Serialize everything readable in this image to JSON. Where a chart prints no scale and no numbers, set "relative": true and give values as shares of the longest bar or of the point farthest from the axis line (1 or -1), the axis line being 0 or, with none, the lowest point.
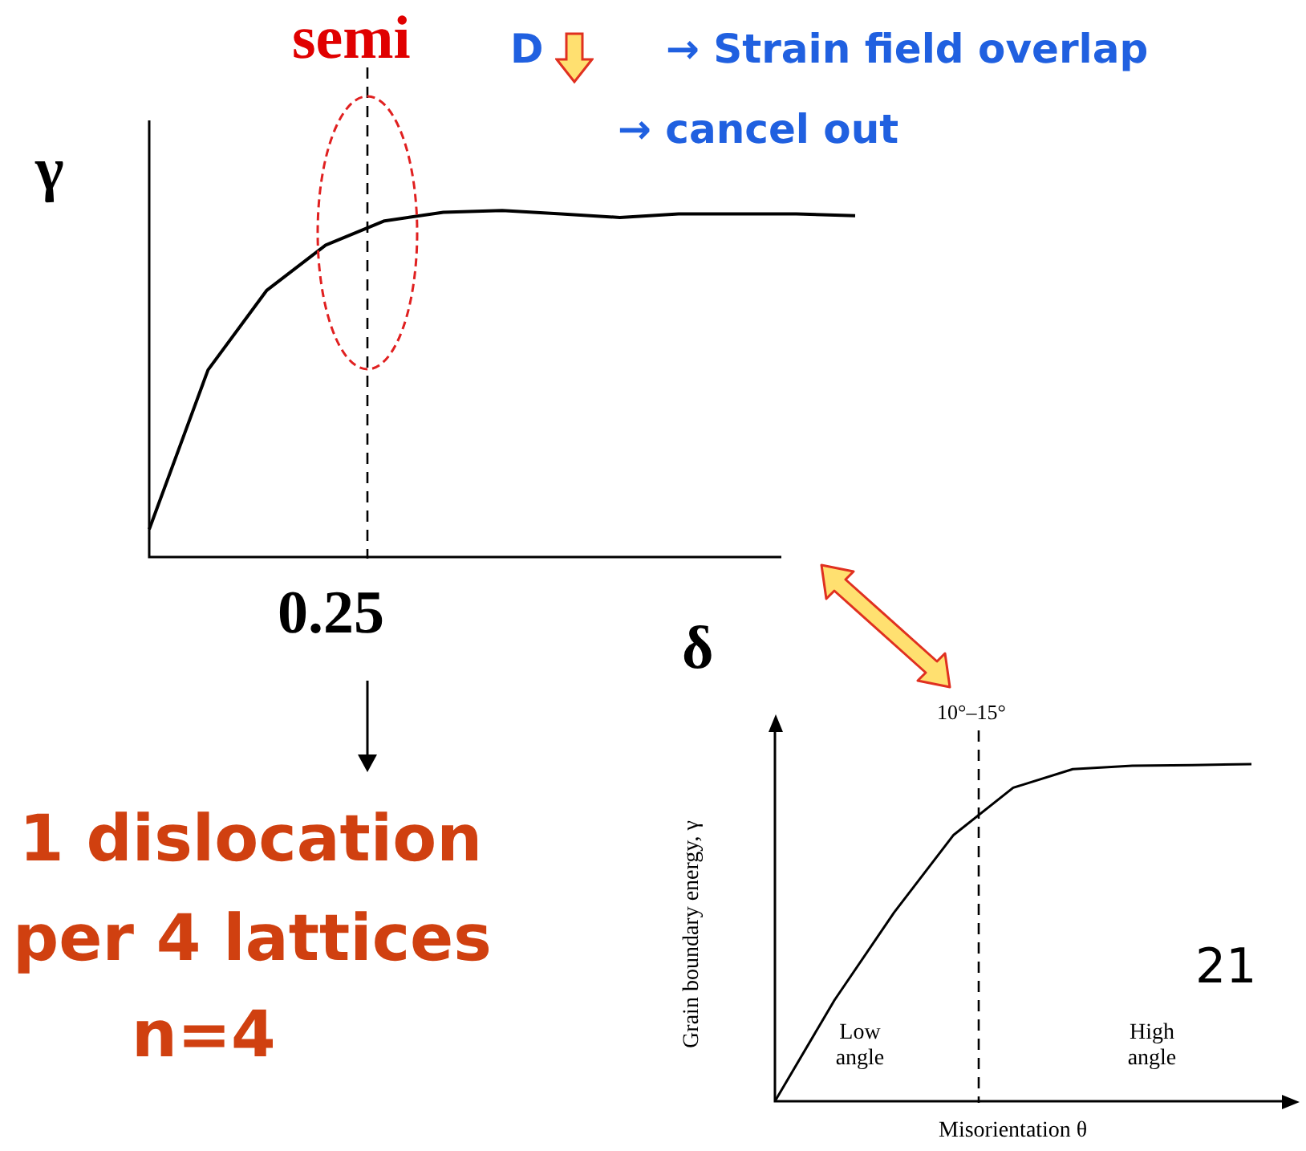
{
  "chart_data": [
    {
      "type": "line",
      "relative": true,
      "xlabel": "δ",
      "ylabel": "γ",
      "categories": [
        null,
        null,
        null,
        null,
        null,
        null,
        null,
        null,
        null,
        null,
        null,
        null,
        null
      ],
      "tick_labels": false,
      "series": [
        {
          "color": "#000000",
          "values": [
            0.08,
            0.54,
            0.77,
            0.9,
            0.97,
            0.995,
            1,
            0.99,
            0.98,
            0.99,
            0.99,
            0.99,
            0.985
          ]
        }
      ],
      "annotations": [
        "D",
        "→ Strain field overlap",
        "→ cancel out",
        "1 dislocation",
        "per 4 lattices",
        "n=4",
        "semi",
        "0.25"
      ],
      "marker": "none",
      "legend": false
    },
    {
      "type": "line",
      "relative": true,
      "xlabel": "Misorientation θ",
      "ylabel": "Grain boundary energy, γ",
      "categories": [
        null,
        null,
        null,
        null,
        null,
        null,
        null,
        null,
        null
      ],
      "tick_labels": false,
      "series": [
        {
          "color": "#000000",
          "values": [
            0,
            0.3,
            0.56,
            0.79,
            0.93,
            0.985,
            0.995,
            0.997,
            1
          ]
        }
      ],
      "annotations": [
        "Low angle",
        "High angle",
        "21",
        "10°–15°"
      ],
      "marker": "none",
      "legend": false
    }
  ]
}
